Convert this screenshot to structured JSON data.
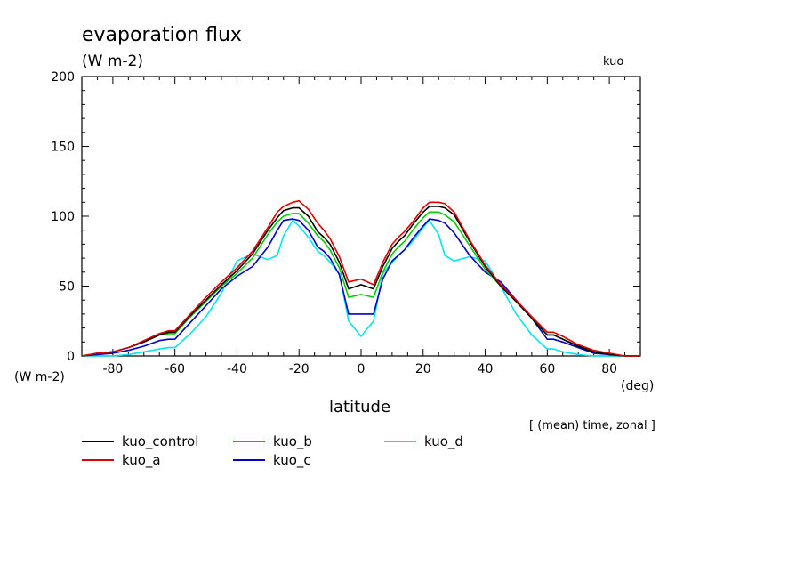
{
  "chart_data": {
    "type": "line",
    "title": "evaporation flux",
    "subtitle": "(W m-2)",
    "run_label": "kuo",
    "ylabel": "(W m-2)",
    "xlabel": "latitude",
    "xunit": "(deg)",
    "note": "[ (mean) time, zonal ]",
    "xlim": [
      -90,
      90
    ],
    "ylim": [
      0,
      200
    ],
    "xticks": [
      -80,
      -60,
      -40,
      -20,
      0,
      20,
      40,
      60,
      80
    ],
    "yticks": [
      0,
      50,
      100,
      150,
      200
    ],
    "x": [
      -90,
      -85,
      -80,
      -75,
      -70,
      -65,
      -62,
      -60,
      -55,
      -50,
      -45,
      -40,
      -35,
      -30,
      -27,
      -25,
      -22,
      -20,
      -17,
      -14,
      -12,
      -10,
      -7,
      -4,
      0,
      4,
      7,
      10,
      12,
      14,
      17,
      20,
      22,
      25,
      27,
      30,
      35,
      40,
      45,
      50,
      55,
      60,
      62,
      65,
      70,
      75,
      80,
      85,
      90
    ],
    "series": [
      {
        "name": "kuo_control",
        "color": "#000000",
        "values": [
          0,
          2,
          3,
          6,
          10,
          15,
          17,
          17,
          29,
          40,
          51,
          61,
          73,
          90,
          99,
          104,
          106,
          106,
          100,
          89,
          85,
          80,
          67,
          48,
          51,
          48,
          64,
          77,
          82,
          86,
          95,
          103,
          107,
          107,
          106,
          101,
          82,
          64,
          50,
          39,
          27,
          15,
          15,
          12,
          7,
          3,
          1,
          0,
          0
        ]
      },
      {
        "name": "kuo_a",
        "color": "#e00000",
        "values": [
          0,
          2,
          3,
          6,
          11,
          16,
          18,
          18,
          30,
          42,
          53,
          63,
          75,
          92,
          103,
          107,
          110,
          111,
          105,
          95,
          90,
          84,
          71,
          53,
          55,
          51,
          67,
          80,
          85,
          89,
          97,
          106,
          110,
          110,
          109,
          103,
          83,
          65,
          51,
          40,
          28,
          17,
          17,
          14,
          8,
          4,
          2,
          0,
          0
        ]
      },
      {
        "name": "kuo_b",
        "color": "#00cc00",
        "values": [
          0,
          2,
          3,
          6,
          10,
          15,
          16,
          16,
          28,
          39,
          50,
          59,
          70,
          87,
          96,
          100,
          102,
          102,
          95,
          86,
          82,
          76,
          63,
          42,
          44,
          42,
          60,
          73,
          78,
          82,
          91,
          99,
          103,
          103,
          101,
          96,
          79,
          62,
          50,
          39,
          27,
          15,
          15,
          12,
          7,
          3,
          1,
          0,
          0
        ]
      },
      {
        "name": "kuo_c",
        "color": "#0000cc",
        "values": [
          0,
          1,
          2,
          4,
          7,
          11,
          12,
          12,
          24,
          36,
          48,
          57,
          64,
          78,
          90,
          97,
          98,
          97,
          90,
          78,
          75,
          70,
          58,
          30,
          30,
          30,
          55,
          68,
          72,
          76,
          85,
          93,
          98,
          97,
          95,
          88,
          72,
          60,
          53,
          40,
          27,
          12,
          12,
          10,
          6,
          2,
          1,
          0,
          0
        ]
      },
      {
        "name": "kuo_d",
        "color": "#00e5ee",
        "values": [
          0,
          0,
          0,
          1,
          3,
          5,
          6,
          6,
          16,
          28,
          45,
          68,
          73,
          69,
          72,
          86,
          97,
          93,
          85,
          75,
          72,
          67,
          59,
          25,
          14,
          25,
          59,
          67,
          72,
          76,
          83,
          92,
          97,
          87,
          72,
          68,
          71,
          68,
          50,
          30,
          15,
          5,
          5,
          3,
          1,
          0,
          0,
          0,
          0
        ]
      }
    ],
    "grid": false,
    "legend": "bottom-left"
  }
}
